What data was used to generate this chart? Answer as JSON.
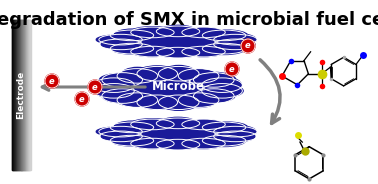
{
  "title": "Degradation of SMX in microbial fuel cell",
  "title_fontsize": 13,
  "title_fontweight": "bold",
  "bg_color": "#ffffff",
  "electrode_label": "Electrode",
  "electrode_label_fontsize": 6.5,
  "microbe_color": "#1a1a99",
  "microbe_edge_color": "#ffffff",
  "microbe_label": "Microbe",
  "microbe_label_color": "#ffffff",
  "microbe_label_fontsize": 8.5,
  "electron_color": "#cc0000",
  "arrow_color": "#808080",
  "figsize": [
    3.78,
    1.84
  ],
  "dpi": 100
}
